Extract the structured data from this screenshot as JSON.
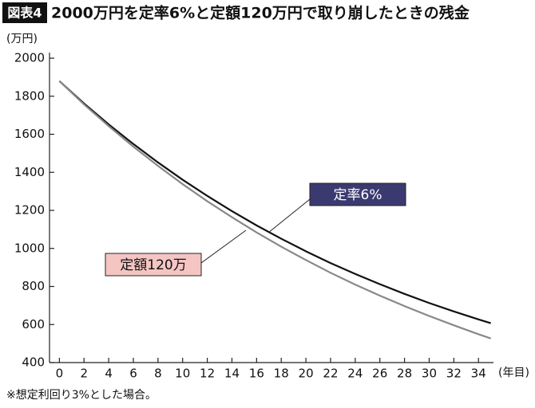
{
  "chart_data": {
    "type": "line",
    "title_tag": "図表4",
    "title": "2000万円を定率6%と定額120万円で取り崩したときの残金",
    "y_label": "(万円)",
    "x_label": "(年目)",
    "note": "※想定利回り3%とした場合。",
    "x": [
      0,
      2,
      4,
      6,
      8,
      10,
      12,
      14,
      16,
      18,
      20,
      22,
      24,
      26,
      28,
      30,
      32,
      34,
      35
    ],
    "series": [
      {
        "name": "定率6%",
        "color": "#111111",
        "values": [
          1880,
          1762,
          1652,
          1549,
          1452,
          1361,
          1276,
          1196,
          1121,
          1051,
          985,
          923,
          866,
          812,
          761,
          713,
          669,
          627,
          607
        ]
      },
      {
        "name": "定額120万",
        "color": "#888888",
        "values": [
          1880,
          1757,
          1643,
          1535,
          1434,
          1338,
          1248,
          1164,
          1084,
          1009,
          939,
          872,
          810,
          752,
          697,
          645,
          596,
          549,
          527
        ]
      }
    ],
    "xlim": [
      -0.8,
      35.8
    ],
    "xticks": [
      0,
      2,
      4,
      6,
      8,
      10,
      12,
      14,
      16,
      18,
      20,
      22,
      24,
      26,
      28,
      30,
      32,
      34
    ],
    "ylim": [
      400,
      2000
    ],
    "yticks": [
      400,
      600,
      800,
      1000,
      1200,
      1400,
      1600,
      1800,
      2000
    ]
  }
}
